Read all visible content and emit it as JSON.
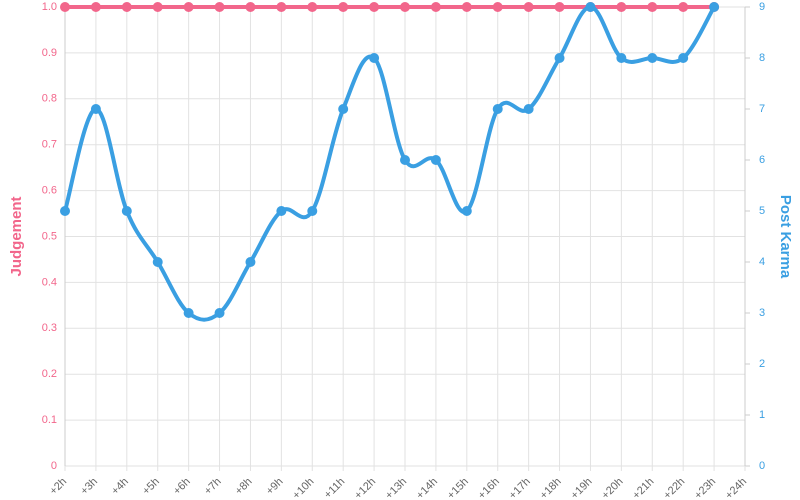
{
  "chart_data": {
    "type": "line",
    "categories": [
      "+2h",
      "+3h",
      "+4h",
      "+5h",
      "+6h",
      "+7h",
      "+8h",
      "+9h",
      "+10h",
      "+11h",
      "+12h",
      "+13h",
      "+14h",
      "+15h",
      "+16h",
      "+17h",
      "+18h",
      "+19h",
      "+20h",
      "+21h",
      "+22h",
      "+23h",
      "+24h"
    ],
    "series": [
      {
        "name": "Judgement",
        "color": "#f2668b",
        "values": [
          1,
          1,
          1,
          1,
          1,
          1,
          1,
          1,
          1,
          1,
          1,
          1,
          1,
          1,
          1,
          1,
          1,
          1,
          1,
          1,
          1,
          1,
          null
        ]
      },
      {
        "name": "Post Karma",
        "color": "#3a9fe2",
        "axis": "y2",
        "values": [
          5,
          7,
          5,
          4,
          3,
          3,
          4,
          5,
          5,
          7,
          8,
          6,
          6,
          5,
          7,
          7,
          8,
          9,
          8,
          8,
          8,
          9,
          null
        ]
      }
    ],
    "ylabel": "Judgement",
    "y2label": "Post Karma",
    "ylim": [
      0,
      1
    ],
    "yticks": [
      0,
      0.1,
      0.2,
      0.3,
      0.4,
      0.5,
      0.6,
      0.7,
      0.8,
      0.9,
      {
        "value": 1,
        "label": "1.0"
      }
    ],
    "y2lim": [
      0,
      9
    ],
    "y2ticks": [
      0,
      1,
      2,
      3,
      4,
      5,
      6,
      7,
      8,
      9
    ],
    "grid": true,
    "smooth": true
  }
}
